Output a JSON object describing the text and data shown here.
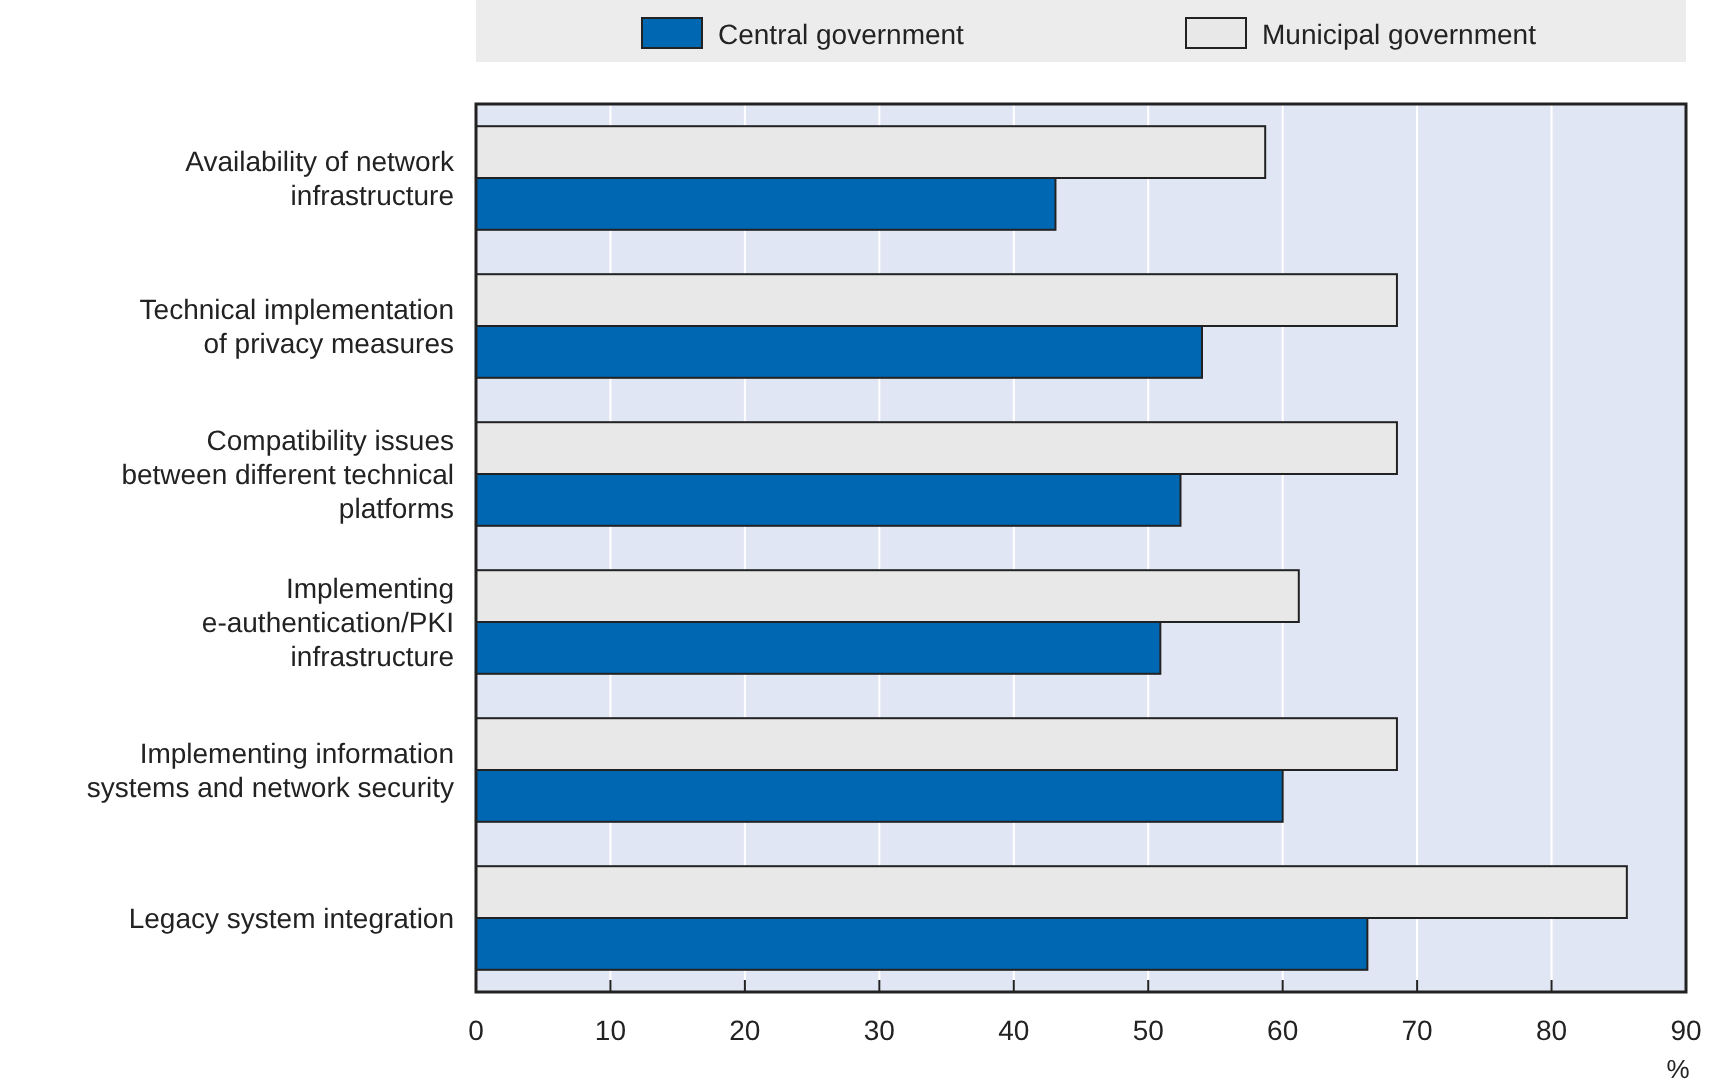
{
  "chart_data": {
    "type": "bar",
    "orientation": "horizontal",
    "xlabel": "%",
    "categories": [
      "Availability of network\ninfrastructure",
      "Technical implementation\nof privacy measures",
      "Compatibility issues\nbetween different technical\nplatforms",
      "Implementing\ne-authentication/PKI\ninfrastructure",
      "Implementing information\nsystems and network security",
      "Legacy system integration"
    ],
    "series": [
      {
        "name": "Central government",
        "color": "#0068b3",
        "values": [
          43.1,
          54.0,
          52.4,
          50.9,
          60.0,
          66.3
        ]
      },
      {
        "name": "Municipal government",
        "color": "#e8e8e8",
        "values": [
          58.7,
          68.5,
          68.5,
          61.2,
          68.5,
          85.6
        ]
      }
    ],
    "xlim": [
      0,
      90
    ],
    "xticks": [
      0,
      10,
      20,
      30,
      40,
      50,
      60,
      70,
      80,
      90
    ],
    "grid": "x",
    "legend": "top"
  }
}
